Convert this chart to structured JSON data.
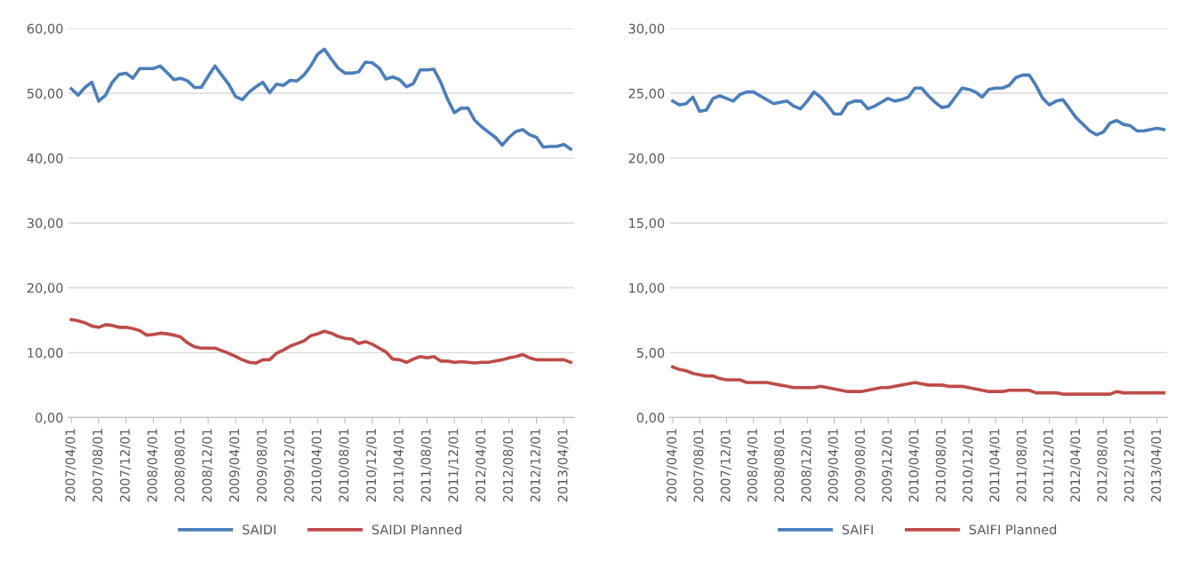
{
  "chart_data": [
    {
      "type": "line",
      "legend": "bottom",
      "grid": "y",
      "marker": "none",
      "line_style": "solid",
      "categories": [
        "2007/04/01",
        null,
        null,
        null,
        "2007/08/01",
        null,
        null,
        null,
        "2007/12/01",
        null,
        null,
        null,
        "2008/04/01",
        null,
        null,
        null,
        "2008/08/01",
        null,
        null,
        null,
        "2008/12/01",
        null,
        null,
        null,
        "2009/04/01",
        null,
        null,
        null,
        "2009/08/01",
        null,
        null,
        null,
        "2009/12/01",
        null,
        null,
        null,
        "2010/04/01",
        null,
        null,
        null,
        "2010/08/01",
        null,
        null,
        null,
        "2010/12/01",
        null,
        null,
        null,
        "2011/04/01",
        null,
        null,
        null,
        "2011/08/01",
        null,
        null,
        null,
        "2011/12/01",
        null,
        null,
        null,
        "2012/04/01",
        null,
        null,
        null,
        "2012/08/01",
        null,
        null,
        null,
        "2012/12/01",
        null,
        null,
        null,
        "2013/04/01",
        null
      ],
      "ylim": [
        0,
        60
      ],
      "yticks": [
        {
          "value": 0,
          "label": "0,00"
        },
        {
          "value": 10,
          "label": "10,00"
        },
        {
          "value": 20,
          "label": "20,00"
        },
        {
          "value": 30,
          "label": "30,00"
        },
        {
          "value": 40,
          "label": "40,00"
        },
        {
          "value": 50,
          "label": "50,00"
        },
        {
          "value": 60,
          "label": "60,00"
        }
      ],
      "series": [
        {
          "name": "SAIDI",
          "color": "#4a7ebb",
          "values": [
            50.7,
            49.7,
            50.9,
            51.7,
            48.8,
            49.7,
            51.7,
            52.9,
            53.1,
            52.3,
            53.8,
            53.8,
            53.8,
            54.2,
            53.2,
            52.1,
            52.3,
            51.9,
            50.9,
            50.9,
            52.6,
            54.2,
            52.8,
            51.4,
            49.5,
            49.0,
            50.2,
            51.0,
            51.7,
            50.1,
            51.4,
            51.2,
            52.0,
            51.9,
            52.8,
            54.2,
            56.0,
            56.8,
            55.3,
            53.9,
            53.1,
            53.1,
            53.3,
            54.8,
            54.7,
            53.9,
            52.2,
            52.5,
            52.1,
            51.0,
            51.5,
            53.6,
            53.6,
            53.7,
            51.7,
            49.1,
            47.0,
            47.7,
            47.7,
            45.8,
            44.8,
            44.0,
            43.2,
            42.0,
            43.2,
            44.1,
            44.4,
            43.6,
            43.2,
            41.7,
            41.8,
            41.8,
            42.1,
            41.4
          ]
        },
        {
          "name": "SAIDI Planned",
          "color": "#be4b48",
          "values": [
            15.1,
            14.9,
            14.6,
            14.1,
            13.9,
            14.3,
            14.2,
            13.9,
            13.9,
            13.7,
            13.4,
            12.7,
            12.8,
            13.0,
            12.9,
            12.7,
            12.4,
            11.5,
            10.9,
            10.7,
            10.7,
            10.7,
            10.3,
            9.9,
            9.4,
            8.9,
            8.5,
            8.4,
            8.9,
            8.9,
            9.9,
            10.4,
            11.0,
            11.4,
            11.8,
            12.6,
            12.9,
            13.3,
            13.0,
            12.5,
            12.2,
            12.1,
            11.4,
            11.7,
            11.3,
            10.7,
            10.1,
            9.0,
            8.9,
            8.5,
            9.0,
            9.4,
            9.2,
            9.4,
            8.7,
            8.7,
            8.5,
            8.6,
            8.5,
            8.4,
            8.5,
            8.5,
            8.7,
            8.9,
            9.2,
            9.4,
            9.7,
            9.2,
            8.9,
            8.9,
            8.9,
            8.9,
            8.9,
            8.5
          ]
        }
      ]
    },
    {
      "type": "line",
      "legend": "bottom",
      "grid": "y",
      "marker": "none",
      "line_style": "solid",
      "categories": [
        "2007/04/01",
        null,
        null,
        null,
        "2007/08/01",
        null,
        null,
        null,
        "2007/12/01",
        null,
        null,
        null,
        "2008/04/01",
        null,
        null,
        null,
        "2008/08/01",
        null,
        null,
        null,
        "2008/12/01",
        null,
        null,
        null,
        "2009/04/01",
        null,
        null,
        null,
        "2009/08/01",
        null,
        null,
        null,
        "2009/12/01",
        null,
        null,
        null,
        "2010/04/01",
        null,
        null,
        null,
        "2010/08/01",
        null,
        null,
        null,
        "2010/12/01",
        null,
        null,
        null,
        "2011/04/01",
        null,
        null,
        null,
        "2011/08/01",
        null,
        null,
        null,
        "2011/12/01",
        null,
        null,
        null,
        "2012/04/01",
        null,
        null,
        null,
        "2012/08/01",
        null,
        null,
        null,
        "2012/12/01",
        null,
        null,
        null,
        "2013/04/01",
        null
      ],
      "ylim": [
        0,
        30
      ],
      "yticks": [
        {
          "value": 0,
          "label": "0,00"
        },
        {
          "value": 5,
          "label": "5,00"
        },
        {
          "value": 10,
          "label": "10,00"
        },
        {
          "value": 15,
          "label": "15,00"
        },
        {
          "value": 20,
          "label": "20,00"
        },
        {
          "value": 25,
          "label": "25,00"
        },
        {
          "value": 30,
          "label": "30,00"
        }
      ],
      "series": [
        {
          "name": "SAIFI",
          "color": "#4a7ebb",
          "values": [
            24.4,
            24.1,
            24.2,
            24.7,
            23.6,
            23.7,
            24.6,
            24.8,
            24.6,
            24.4,
            24.9,
            25.1,
            25.1,
            24.8,
            24.5,
            24.2,
            24.3,
            24.4,
            24.0,
            23.8,
            24.4,
            25.1,
            24.7,
            24.1,
            23.4,
            23.4,
            24.2,
            24.4,
            24.4,
            23.8,
            24.0,
            24.3,
            24.6,
            24.4,
            24.5,
            24.7,
            25.4,
            25.4,
            24.8,
            24.3,
            23.9,
            24.0,
            24.7,
            25.4,
            25.3,
            25.1,
            24.7,
            25.3,
            25.4,
            25.4,
            25.6,
            26.2,
            26.4,
            26.4,
            25.6,
            24.6,
            24.1,
            24.4,
            24.5,
            23.8,
            23.1,
            22.6,
            22.1,
            21.8,
            22.0,
            22.7,
            22.9,
            22.6,
            22.5,
            22.1,
            22.1,
            22.2,
            22.3,
            22.2
          ]
        },
        {
          "name": "SAIFI Planned",
          "color": "#be4b48",
          "values": [
            3.9,
            3.7,
            3.6,
            3.4,
            3.3,
            3.2,
            3.2,
            3.0,
            2.9,
            2.9,
            2.9,
            2.7,
            2.7,
            2.7,
            2.7,
            2.6,
            2.5,
            2.4,
            2.3,
            2.3,
            2.3,
            2.3,
            2.4,
            2.3,
            2.2,
            2.1,
            2.0,
            2.0,
            2.0,
            2.1,
            2.2,
            2.3,
            2.3,
            2.4,
            2.5,
            2.6,
            2.7,
            2.6,
            2.5,
            2.5,
            2.5,
            2.4,
            2.4,
            2.4,
            2.3,
            2.2,
            2.1,
            2.0,
            2.0,
            2.0,
            2.1,
            2.1,
            2.1,
            2.1,
            1.9,
            1.9,
            1.9,
            1.9,
            1.8,
            1.8,
            1.8,
            1.8,
            1.8,
            1.8,
            1.8,
            1.8,
            2.0,
            1.9,
            1.9,
            1.9,
            1.9,
            1.9,
            1.9,
            1.9
          ]
        }
      ]
    }
  ]
}
